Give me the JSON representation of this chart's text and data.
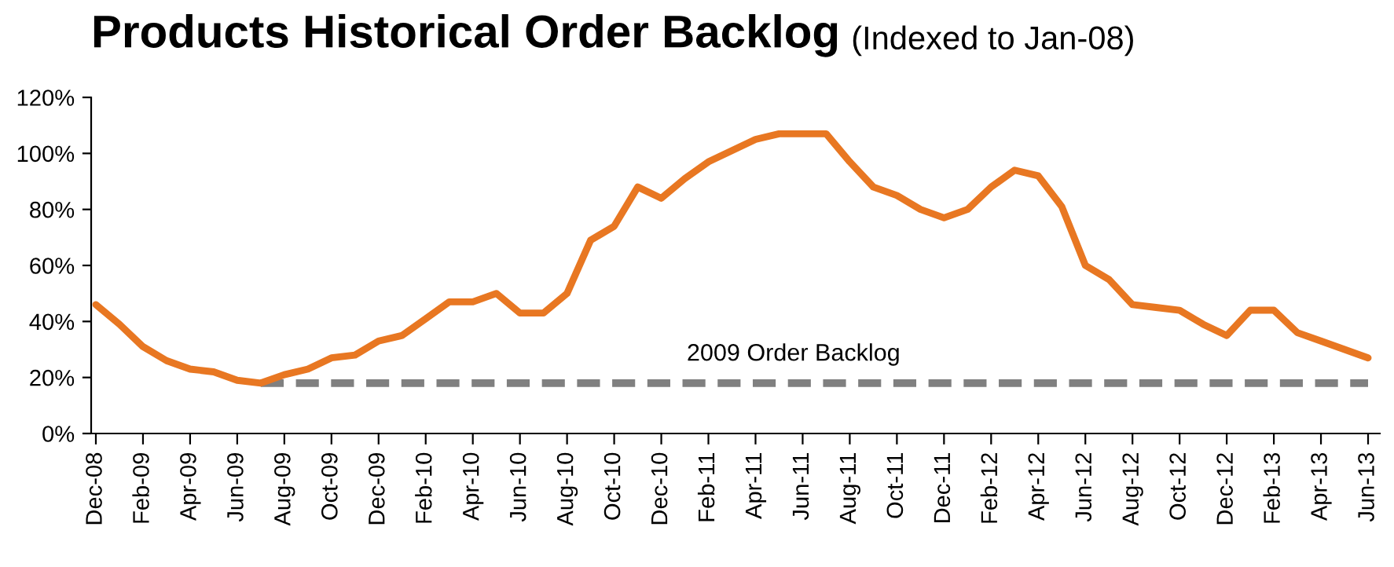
{
  "chart_data": {
    "type": "line",
    "title": "Products Historical Order Backlog",
    "subtitle": "(Indexed to Jan-08)",
    "categories": [
      "Dec-08",
      null,
      "Feb-09",
      null,
      "Apr-09",
      null,
      "Jun-09",
      null,
      "Aug-09",
      null,
      "Oct-09",
      null,
      "Dec-09",
      null,
      "Feb-10",
      null,
      "Apr-10",
      null,
      "Jun-10",
      null,
      "Aug-10",
      null,
      "Oct-10",
      null,
      "Dec-10",
      null,
      "Feb-11",
      null,
      "Apr-11",
      null,
      "Jun-11",
      null,
      "Aug-11",
      null,
      "Oct-11",
      null,
      "Dec-11",
      null,
      "Feb-12",
      null,
      "Apr-12",
      null,
      "Jun-12",
      null,
      "Aug-12",
      null,
      "Oct-12",
      null,
      "Dec-12",
      null,
      "Feb-13",
      null,
      "Apr-13",
      null,
      "Jun-13"
    ],
    "series": [
      {
        "color": "#e87722",
        "line_style": "solid",
        "values": [
          46,
          39,
          31,
          26,
          23,
          22,
          19,
          18,
          21,
          23,
          27,
          28,
          33,
          35,
          41,
          47,
          47,
          50,
          43,
          43,
          50,
          69,
          74,
          88,
          84,
          91,
          97,
          101,
          105,
          107,
          107,
          107,
          97,
          88,
          85,
          80,
          77,
          80,
          88,
          94,
          92,
          81,
          60,
          55,
          46,
          45,
          44,
          39,
          35,
          44,
          44,
          36,
          33,
          30,
          27
        ]
      },
      {
        "color": "#808080",
        "line_style": "dashed",
        "values": [
          null,
          null,
          null,
          null,
          null,
          null,
          null,
          18,
          18,
          18,
          18,
          18,
          18,
          18,
          18,
          18,
          18,
          18,
          18,
          18,
          18,
          18,
          18,
          18,
          18,
          18,
          18,
          18,
          18,
          18,
          18,
          18,
          18,
          18,
          18,
          18,
          18,
          18,
          18,
          18,
          18,
          18,
          18,
          18,
          18,
          18,
          18,
          18,
          18,
          18,
          18,
          18,
          18,
          18,
          18
        ]
      }
    ],
    "annotations": [
      "2009 Order Backlog"
    ],
    "ylim": [
      0,
      120
    ],
    "yticks": [
      {
        "value": 0,
        "label": "0%"
      },
      {
        "value": 20,
        "label": "20%"
      },
      {
        "value": 40,
        "label": "40%"
      },
      {
        "value": 60,
        "label": "60%"
      },
      {
        "value": 80,
        "label": "80%"
      },
      {
        "value": 100,
        "label": "100%"
      },
      {
        "value": 120,
        "label": "120%"
      }
    ],
    "grid": false,
    "legend": false,
    "marker": "none"
  }
}
